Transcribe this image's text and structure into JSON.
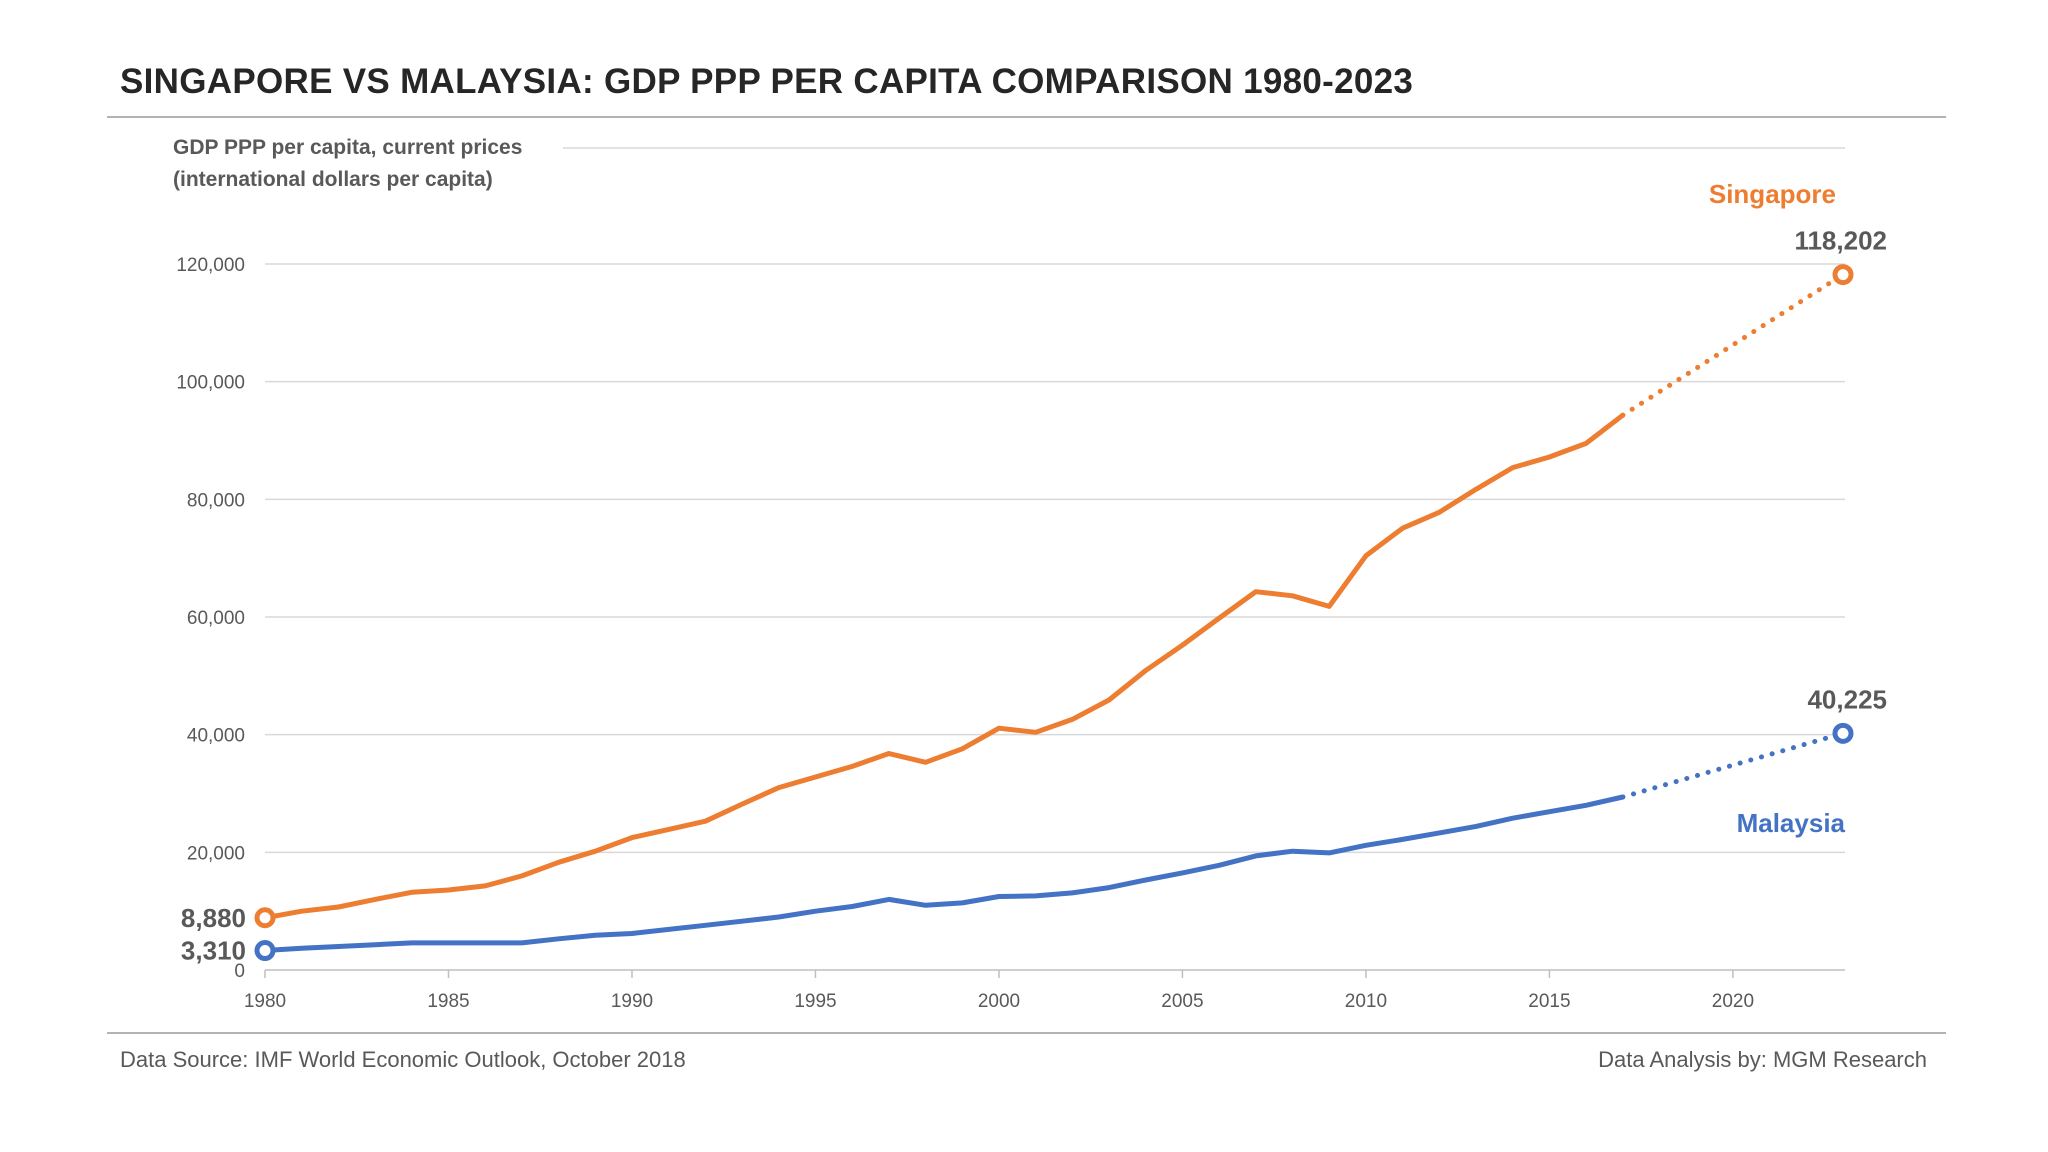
{
  "title": "SINGAPORE VS MALAYSIA: GDP PPP PER CAPITA COMPARISON 1980-2023",
  "footer": {
    "source": "Data Source: IMF World Economic Outlook, October 2018",
    "analysis": "Data Analysis by: MGM Research"
  },
  "chart_data": {
    "type": "line",
    "title": "SINGAPORE VS MALAYSIA: GDP PPP PER CAPITA COMPARISON 1980-2023",
    "ylabel_lines": [
      "GDP PPP per capita, current prices",
      "(international dollars per capita)"
    ],
    "xlabel": "",
    "xlim": [
      1980,
      2023
    ],
    "ylim": [
      0,
      120000
    ],
    "x_ticks": [
      1980,
      1985,
      1990,
      1995,
      2000,
      2005,
      2010,
      2015,
      2020
    ],
    "x_tick_labels": [
      "1980",
      "1985",
      "1990",
      "1995",
      "2000",
      "2005",
      "2010",
      "2015",
      "2020"
    ],
    "y_ticks": [
      0,
      20000,
      40000,
      60000,
      80000,
      100000,
      120000
    ],
    "y_tick_labels": [
      "0",
      "20,000",
      "40,000",
      "60,000",
      "80,000",
      "100,000",
      "120,000"
    ],
    "grid": "horizontal",
    "legend": "inline labels near series ends",
    "projection_start": 2017,
    "series": [
      {
        "name": "Singapore",
        "color": "#ed7d31",
        "x": [
          1980,
          1981,
          1982,
          1983,
          1984,
          1985,
          1986,
          1987,
          1988,
          1989,
          1990,
          1991,
          1992,
          1993,
          1994,
          1995,
          1996,
          1997,
          1998,
          1999,
          2000,
          2001,
          2002,
          2003,
          2004,
          2005,
          2006,
          2007,
          2008,
          2009,
          2010,
          2011,
          2012,
          2013,
          2014,
          2015,
          2016,
          2017,
          2023
        ],
        "values": [
          8880,
          10000,
          10700,
          12000,
          13200,
          13600,
          14300,
          16000,
          18300,
          20200,
          22500,
          23900,
          25300,
          28200,
          31000,
          32800,
          34600,
          36800,
          35300,
          37600,
          41100,
          40400,
          42600,
          45900,
          50900,
          55200,
          59800,
          64300,
          63600,
          61800,
          70400,
          75100,
          77800,
          81700,
          85400,
          87200,
          89500,
          94300,
          118202
        ],
        "start_label": "8,880",
        "end_label": "118,202"
      },
      {
        "name": "Malaysia",
        "color": "#4472c4",
        "x": [
          1980,
          1981,
          1982,
          1983,
          1984,
          1985,
          1986,
          1987,
          1988,
          1989,
          1990,
          1991,
          1992,
          1993,
          1994,
          1995,
          1996,
          1997,
          1998,
          1999,
          2000,
          2001,
          2002,
          2003,
          2004,
          2005,
          2006,
          2007,
          2008,
          2009,
          2010,
          2011,
          2012,
          2013,
          2014,
          2015,
          2016,
          2017,
          2023
        ],
        "values": [
          3310,
          3700,
          4000,
          4300,
          4600,
          4600,
          4600,
          4600,
          5300,
          5900,
          6200,
          6900,
          7600,
          8300,
          9000,
          10000,
          10800,
          12000,
          11000,
          11400,
          12500,
          12600,
          13100,
          14000,
          15300,
          16500,
          17800,
          19400,
          20200,
          19900,
          21200,
          22200,
          23300,
          24400,
          25800,
          26900,
          28000,
          29400,
          40225
        ],
        "start_label": "3,310",
        "end_label": "40,225"
      }
    ]
  }
}
